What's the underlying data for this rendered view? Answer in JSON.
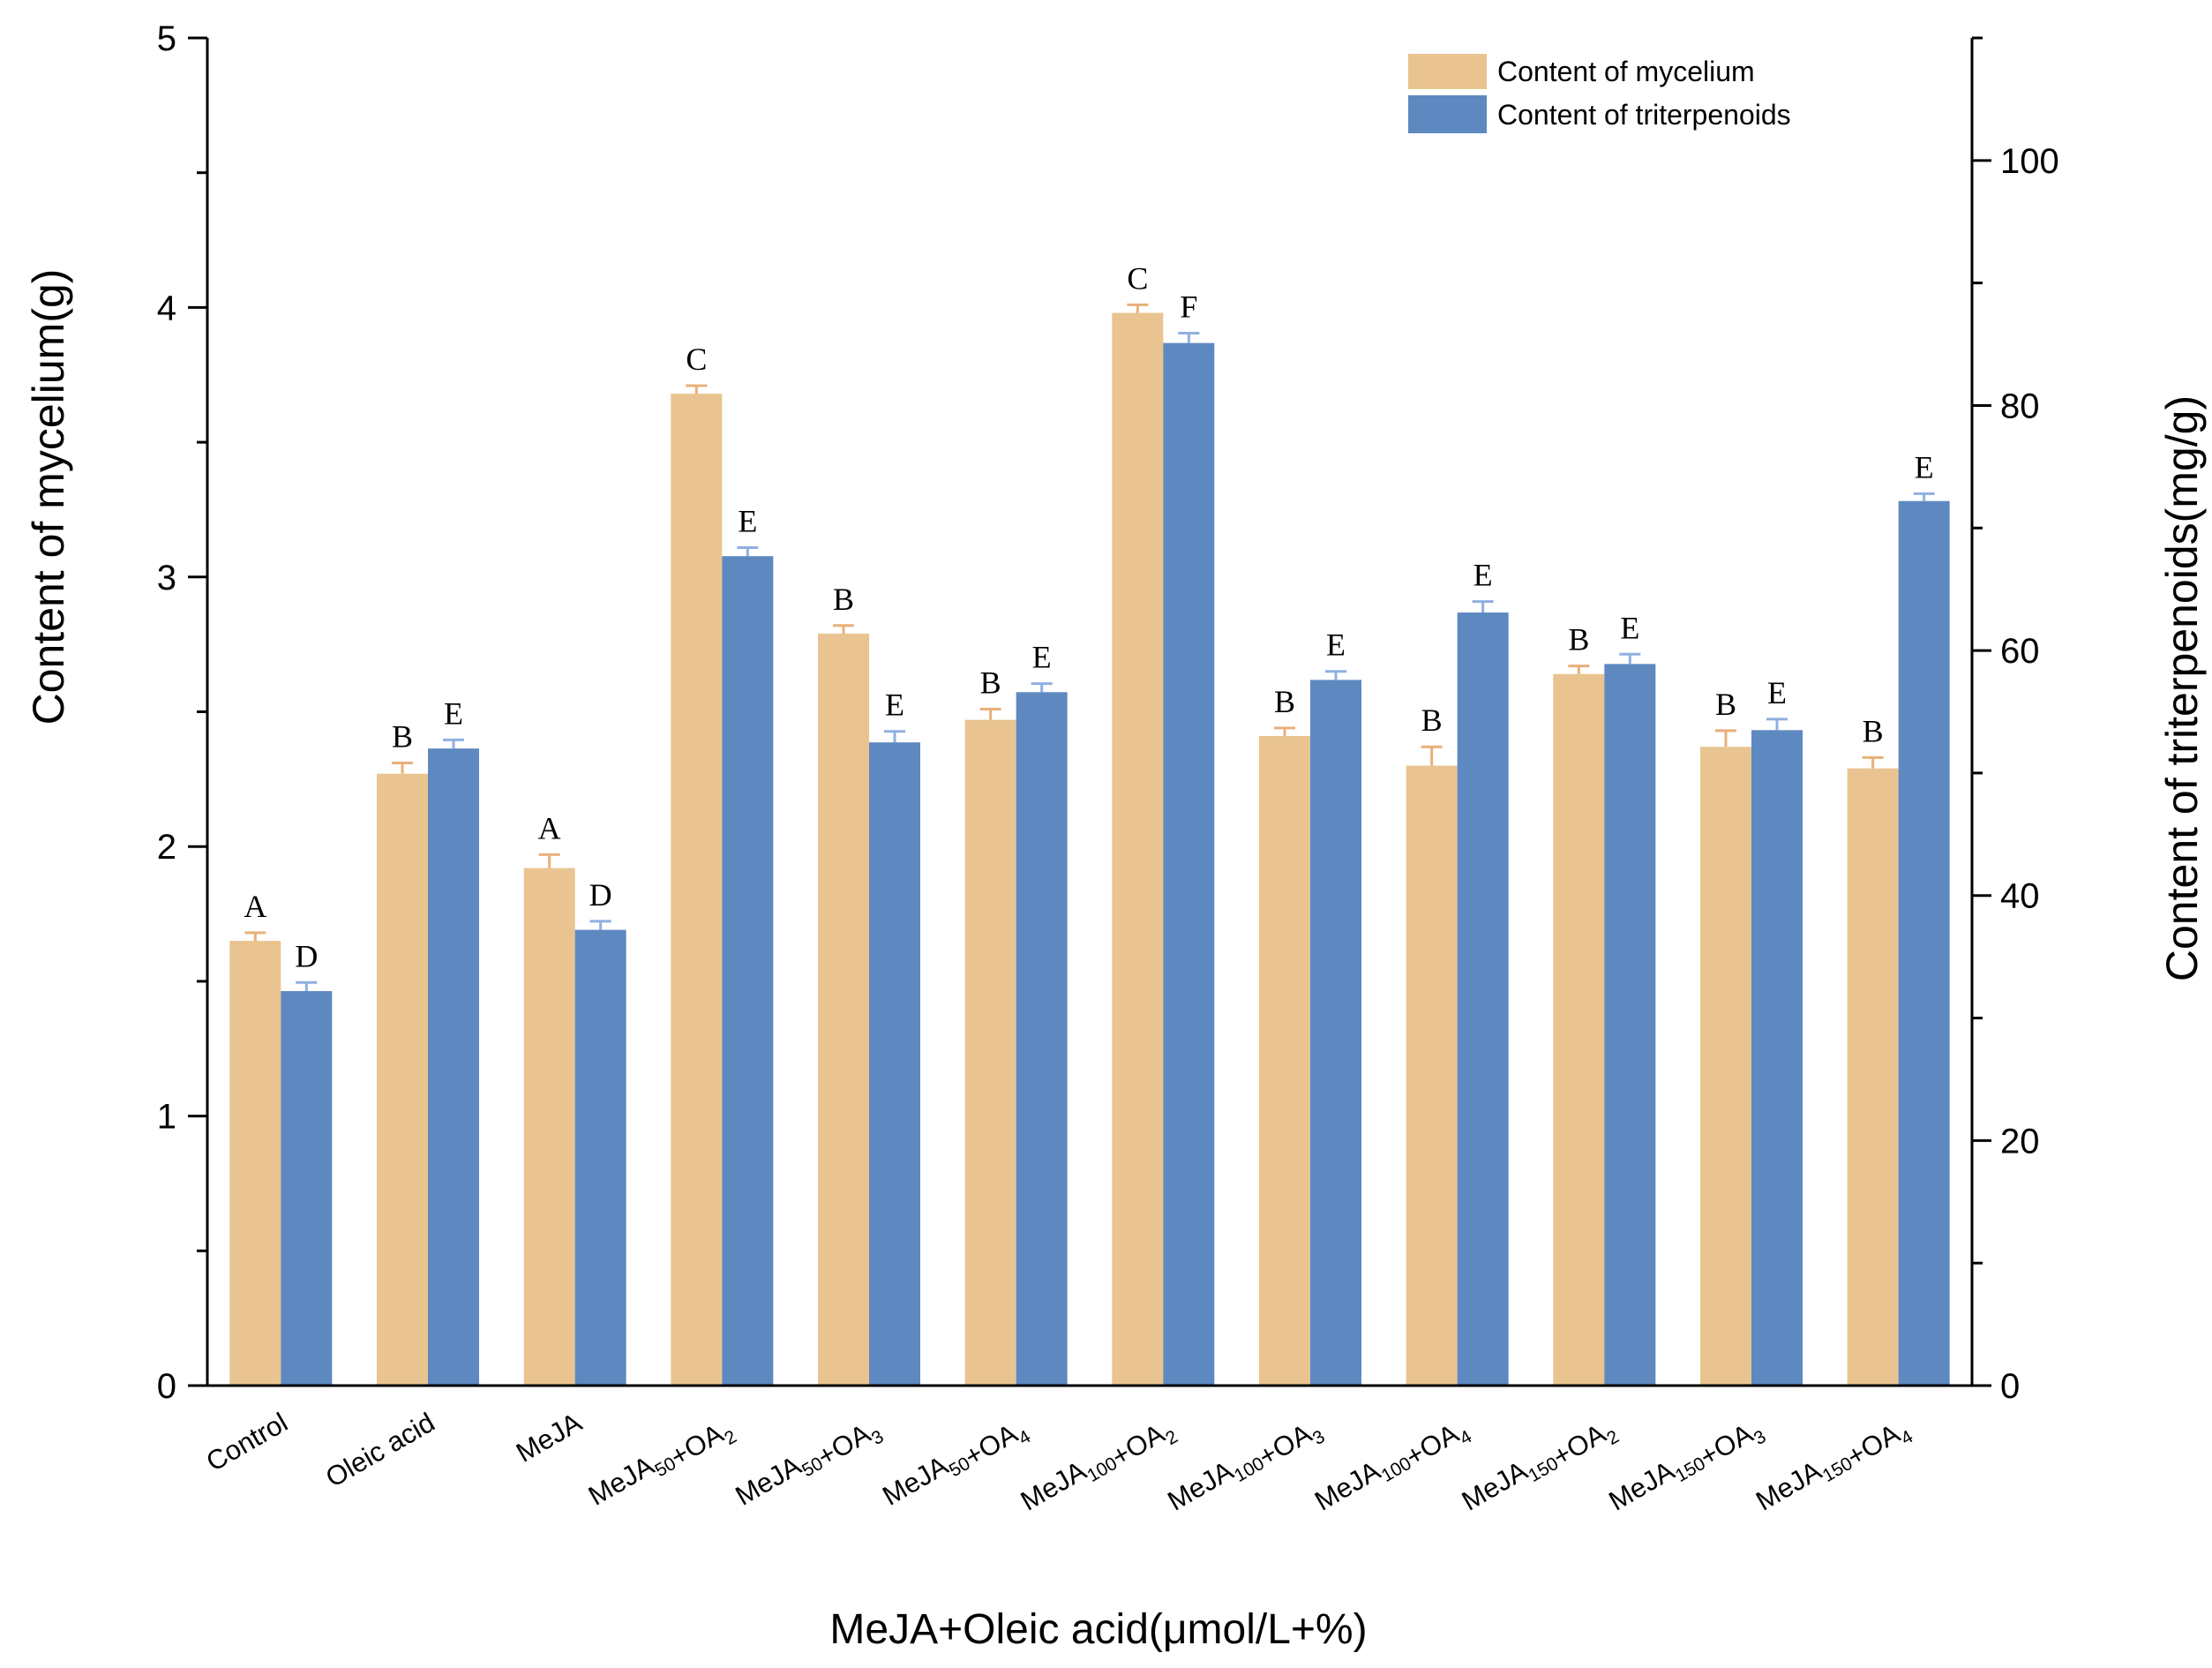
{
  "chart_data": {
    "type": "bar",
    "xlabel": "MeJA+Oleic acid(μmol/L+%)",
    "ylabel_left": "Content of mycelium(g)",
    "ylabel_right": "Content of triterpenoids(mg/g)",
    "ylim_left": [
      0,
      5
    ],
    "ylim_right": [
      0,
      110
    ],
    "yticks_left": [
      "0",
      "1",
      "2",
      "3",
      "4",
      "5"
    ],
    "yticks_right": [
      "0",
      "20",
      "40",
      "60",
      "80",
      "100"
    ],
    "categories": [
      {
        "base": "Control",
        "sub": "",
        "tail": ""
      },
      {
        "base": "Oleic acid",
        "sub": "",
        "tail": ""
      },
      {
        "base": "MeJA",
        "sub": "",
        "tail": ""
      },
      {
        "base": "MeJA",
        "sub": "50",
        "tail": "+OA",
        "tailsub": "2"
      },
      {
        "base": "MeJA",
        "sub": "50",
        "tail": "+OA",
        "tailsub": "3"
      },
      {
        "base": "MeJA",
        "sub": "50",
        "tail": "+OA",
        "tailsub": "4"
      },
      {
        "base": "MeJA",
        "sub": "100",
        "tail": "+OA",
        "tailsub": "2"
      },
      {
        "base": "MeJA",
        "sub": "100",
        "tail": "+OA",
        "tailsub": "3"
      },
      {
        "base": "MeJA",
        "sub": "100",
        "tail": "+OA",
        "tailsub": "4"
      },
      {
        "base": "MeJA",
        "sub": "150",
        "tail": "+OA",
        "tailsub": "2"
      },
      {
        "base": "MeJA",
        "sub": "150",
        "tail": "+OA",
        "tailsub": "3"
      },
      {
        "base": "MeJA",
        "sub": "150",
        "tail": "+OA",
        "tailsub": "4"
      }
    ],
    "series": [
      {
        "name": "Content of mycelium",
        "axis": "left",
        "color": "#E9C490",
        "error_color": "#E9B07A",
        "values": [
          1.65,
          2.27,
          1.92,
          3.68,
          2.79,
          2.47,
          3.98,
          2.41,
          2.3,
          2.64,
          2.37,
          2.29
        ],
        "errors": [
          0.03,
          0.04,
          0.05,
          0.03,
          0.03,
          0.04,
          0.03,
          0.03,
          0.07,
          0.03,
          0.06,
          0.04
        ],
        "letters": [
          "A",
          "B",
          "A",
          "C",
          "B",
          "B",
          "C",
          "B",
          "B",
          "B",
          "B",
          "B"
        ]
      },
      {
        "name": "Content of triterpenoids",
        "axis": "right",
        "color": "#5E88C0",
        "error_color": "#8FB0E0",
        "values": [
          32.2,
          52.0,
          37.2,
          67.7,
          52.5,
          56.6,
          85.1,
          57.6,
          63.1,
          58.9,
          53.5,
          72.2
        ],
        "errors": [
          0.7,
          0.7,
          0.7,
          0.7,
          0.9,
          0.7,
          0.8,
          0.7,
          0.9,
          0.8,
          0.9,
          0.6
        ],
        "letters": [
          "D",
          "E",
          "D",
          "E",
          "E",
          "E",
          "F",
          "E",
          "E",
          "E",
          "E",
          "E"
        ]
      }
    ],
    "legend_position": "top-right"
  }
}
